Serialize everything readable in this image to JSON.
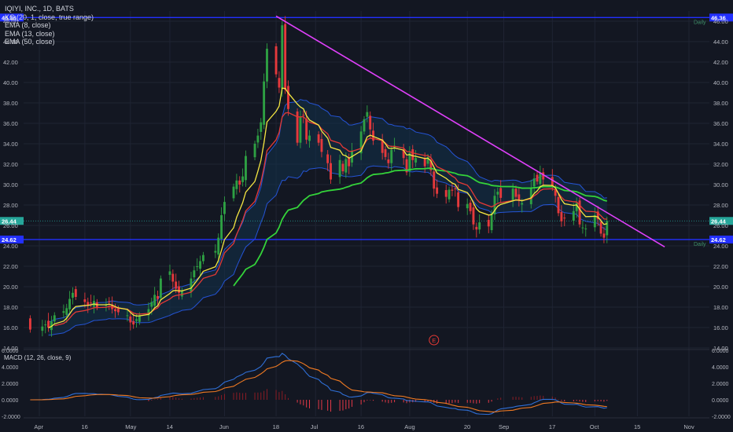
{
  "legend": {
    "symbol": "IQIYI, INC., 1D, BATS",
    "kc": "KC (20, 1, close, true range)",
    "ema8": "EMA (8, close)",
    "ema13": "EMA (13, close)",
    "ema50": "EMA (50, close)"
  },
  "colors": {
    "background": "#131722",
    "grid": "#1f2433",
    "text": "#b2b5be",
    "up": "#26a69a",
    "candle_up": "#2ea043",
    "candle_down": "#e5393c",
    "ema8": "#f5e642",
    "ema13": "#e53935",
    "ema50": "#34d33a",
    "kc": "#2962ff",
    "kc_fill": "#12324a",
    "trendline": "#e040fb",
    "hline": "#2330ff",
    "macd": "#2f6fd6",
    "signal": "#f07a22",
    "hist_neg": "#e53947",
    "hist_pos": "#8a1c24"
  },
  "chart_data": [
    {
      "type": "candlestick",
      "title": "IQIYI, INC., 1D, BATS",
      "ylim": [
        14,
        47
      ],
      "yticks": [
        "14.00",
        "16.00",
        "18.00",
        "20.00",
        "22.00",
        "24.00",
        "24.62",
        "26.00",
        "26.44",
        "28.00",
        "30.00",
        "32.00",
        "34.00",
        "36.00",
        "38.00",
        "40.00",
        "42.00",
        "44.00",
        "46.00",
        "46.36"
      ],
      "x_ticks": [
        "Apr",
        "16",
        "May",
        "14",
        "Jun",
        "18",
        "Jul",
        "16",
        "Aug",
        "20",
        "Sep",
        "17",
        "Oct",
        "15",
        "Nov"
      ],
      "horizontal_lines": [
        {
          "value": 46.36,
          "label": "46.36",
          "tag": "Daily"
        },
        {
          "value": 24.62,
          "label": "24.62",
          "tag": "Daily"
        }
      ],
      "last_price": {
        "value": 26.44,
        "label": "26.44"
      },
      "trendline": {
        "from": {
          "date": "2018-06-18",
          "value": 46.5
        },
        "to": {
          "date": "2018-10-24",
          "value": 23.9
        }
      },
      "earnings_marker": "E",
      "ohlc": {
        "dates": [
          "2018-03-29",
          "2018-04-02",
          "2018-04-03",
          "2018-04-04",
          "2018-04-05",
          "2018-04-06",
          "2018-04-09",
          "2018-04-10",
          "2018-04-11",
          "2018-04-12",
          "2018-04-13",
          "2018-04-16",
          "2018-04-17",
          "2018-04-18",
          "2018-04-19",
          "2018-04-20",
          "2018-04-23",
          "2018-04-24",
          "2018-04-25",
          "2018-04-26",
          "2018-04-27",
          "2018-04-30",
          "2018-05-01",
          "2018-05-02",
          "2018-05-03",
          "2018-05-04",
          "2018-05-07",
          "2018-05-08",
          "2018-05-09",
          "2018-05-10",
          "2018-05-11",
          "2018-05-14",
          "2018-05-15",
          "2018-05-16",
          "2018-05-17",
          "2018-05-18",
          "2018-05-21",
          "2018-05-22",
          "2018-05-23",
          "2018-05-24",
          "2018-05-25",
          "2018-05-29",
          "2018-05-30",
          "2018-05-31",
          "2018-06-01",
          "2018-06-04",
          "2018-06-05",
          "2018-06-06",
          "2018-06-07",
          "2018-06-08",
          "2018-06-11",
          "2018-06-12",
          "2018-06-13",
          "2018-06-14",
          "2018-06-15",
          "2018-06-18",
          "2018-06-19",
          "2018-06-20",
          "2018-06-21",
          "2018-06-22",
          "2018-06-25",
          "2018-06-26",
          "2018-06-27",
          "2018-06-28",
          "2018-06-29",
          "2018-07-02",
          "2018-07-03",
          "2018-07-05",
          "2018-07-06",
          "2018-07-09",
          "2018-07-10",
          "2018-07-11",
          "2018-07-12",
          "2018-07-13",
          "2018-07-16",
          "2018-07-17",
          "2018-07-18",
          "2018-07-19",
          "2018-07-20",
          "2018-07-23",
          "2018-07-24",
          "2018-07-25",
          "2018-07-26",
          "2018-07-27",
          "2018-07-30",
          "2018-07-31",
          "2018-08-01",
          "2018-08-02",
          "2018-08-03",
          "2018-08-06",
          "2018-08-07",
          "2018-08-08",
          "2018-08-09",
          "2018-08-10",
          "2018-08-13",
          "2018-08-14",
          "2018-08-15",
          "2018-08-16",
          "2018-08-17",
          "2018-08-20",
          "2018-08-21",
          "2018-08-22",
          "2018-08-23",
          "2018-08-24",
          "2018-08-27",
          "2018-08-28",
          "2018-08-29",
          "2018-08-30",
          "2018-08-31",
          "2018-09-04",
          "2018-09-05",
          "2018-09-06",
          "2018-09-07",
          "2018-09-10",
          "2018-09-11",
          "2018-09-12",
          "2018-09-13",
          "2018-09-14",
          "2018-09-17",
          "2018-09-18",
          "2018-09-19",
          "2018-09-20",
          "2018-09-21",
          "2018-09-24",
          "2018-09-25",
          "2018-09-26",
          "2018-09-27",
          "2018-09-28",
          "2018-10-01",
          "2018-10-02",
          "2018-10-03",
          "2018-10-04",
          "2018-10-05"
        ],
        "close": [
          15.8,
          16.1,
          16.3,
          16.0,
          16.6,
          17.2,
          17.6,
          17.9,
          18.8,
          19.4,
          19.0,
          18.5,
          18.2,
          18.4,
          18.6,
          18.0,
          18.2,
          18.5,
          17.8,
          17.6,
          17.5,
          17.2,
          16.5,
          16.3,
          16.8,
          17.2,
          17.8,
          18.5,
          19.2,
          18.8,
          20.8,
          21.5,
          20.5,
          19.8,
          19.4,
          19.6,
          20.8,
          21.6,
          22.0,
          22.5,
          23.1,
          23.5,
          24.8,
          27.0,
          28.3,
          29.8,
          30.4,
          30.0,
          30.8,
          32.8,
          34.0,
          34.8,
          36.1,
          40.1,
          43.3,
          40.8,
          39.5,
          45.6,
          39.3,
          37.4,
          34.1,
          36.6,
          36.8,
          34.4,
          34.8,
          34.1,
          33.2,
          32.1,
          30.5,
          32.4,
          31.3,
          32.5,
          31.8,
          33.3,
          35.2,
          36.4,
          37.1,
          35.4,
          34.3,
          33.1,
          32.7,
          32.1,
          33.4,
          33.8,
          32.6,
          31.2,
          33.1,
          32.4,
          32.6,
          31.8,
          32.7,
          31.4,
          29.6,
          29.1,
          28.8,
          29.5,
          29.4,
          29.6,
          27.8,
          28.1,
          27.4,
          26.1,
          25.6,
          26.3,
          25.9,
          27.2,
          28.9,
          29.3,
          28.7,
          29.6,
          28.8,
          28.4,
          28.2,
          29.7,
          30.6,
          30.3,
          31.2,
          30.5,
          29.8,
          28.9,
          27.2,
          26.4,
          26.7,
          27.4,
          28.2,
          26.1,
          25.8,
          25.7,
          27.0,
          26.6,
          25.2,
          24.8,
          26.44
        ]
      },
      "ema50_start": "2018-06-04"
    },
    {
      "type": "line",
      "title": "MACD (12, 26, close, 9)",
      "ylim": [
        -2,
        6
      ],
      "yticks": [
        "6.0000",
        "4.0000",
        "2.0000",
        "0.0000",
        "-2.0000"
      ],
      "series": [
        {
          "name": "MACD",
          "values": "computed from close (12,26)"
        },
        {
          "name": "Signal",
          "values": "computed from MACD (9)"
        },
        {
          "name": "Histogram",
          "values": "MACD - Signal"
        }
      ]
    }
  ]
}
